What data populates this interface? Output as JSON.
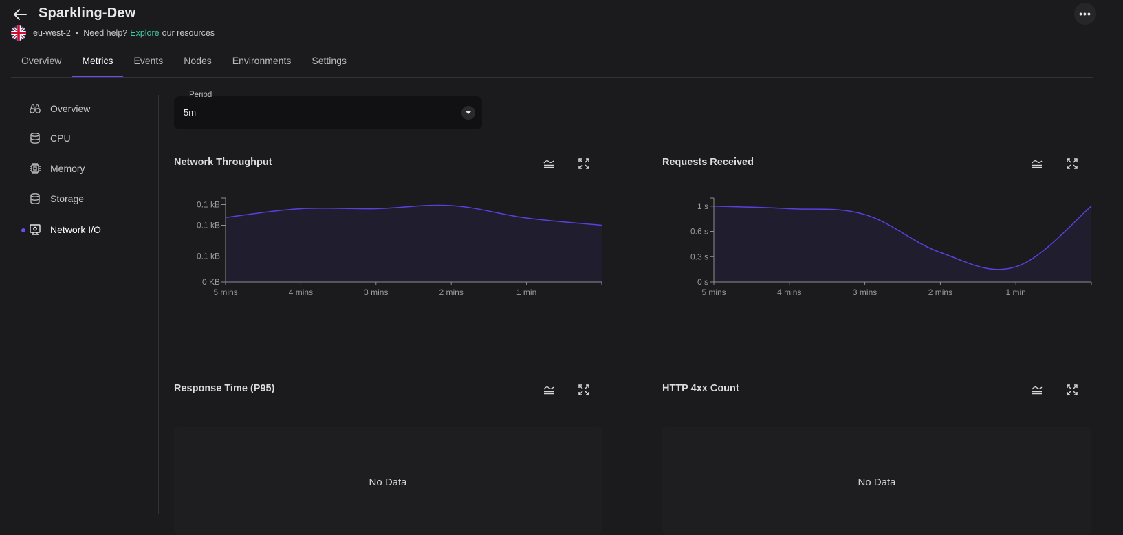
{
  "header": {
    "title": "Sparkling-Dew",
    "region": "eu-west-2",
    "separator": "•",
    "help_prefix": "Need help?",
    "help_link": "Explore",
    "help_suffix": "our resources",
    "more_label": "•••"
  },
  "tabs": [
    {
      "label": "Overview",
      "active": false
    },
    {
      "label": "Metrics",
      "active": true
    },
    {
      "label": "Events",
      "active": false
    },
    {
      "label": "Nodes",
      "active": false
    },
    {
      "label": "Environments",
      "active": false
    },
    {
      "label": "Settings",
      "active": false
    }
  ],
  "sidebar": {
    "items": [
      {
        "label": "Overview",
        "icon": "binoculars-icon",
        "active": false
      },
      {
        "label": "CPU",
        "icon": "database-icon",
        "active": false
      },
      {
        "label": "Memory",
        "icon": "chip-icon",
        "active": false
      },
      {
        "label": "Storage",
        "icon": "database-icon",
        "active": false
      },
      {
        "label": "Network I/O",
        "icon": "network-icon",
        "active": true
      }
    ]
  },
  "period": {
    "label": "Period",
    "value": "5m"
  },
  "cards": {
    "network": {
      "title": "Network Throughput"
    },
    "requests": {
      "title": "Requests Received"
    },
    "response": {
      "title": "Response Time (P95)",
      "empty": "No Data"
    },
    "http4xx": {
      "title": "HTTP 4xx Count",
      "empty": "No Data"
    }
  },
  "colors": {
    "accent": "#6a4cf3",
    "line": "#5b3fe0",
    "link": "#3ec9a7",
    "background": "#1b1b1d"
  },
  "chart_data": [
    {
      "type": "area",
      "title": "Network Throughput",
      "x_ticks": [
        "5 mins",
        "4 mins",
        "3 mins",
        "2 mins",
        "1 min"
      ],
      "x": [
        5,
        4,
        3,
        2,
        1,
        0
      ],
      "y_tick_labels": [
        "0.1 kB",
        "0.1 kB",
        "0.1 kB",
        "0 KB"
      ],
      "y_ticks": [
        0.15,
        0.11,
        0.05,
        0
      ],
      "ylim": [
        0,
        0.16
      ],
      "series": [
        {
          "values": [
            0.125,
            0.142,
            0.142,
            0.148,
            0.124,
            0.11
          ]
        }
      ]
    },
    {
      "type": "area",
      "title": "Requests Received",
      "x_ticks": [
        "5 mins",
        "4 mins",
        "3 mins",
        "2 mins",
        "1 min"
      ],
      "x": [
        5,
        4,
        3,
        2,
        1,
        0
      ],
      "y_tick_labels": [
        "1 s",
        "0.6 s",
        "0.3 s",
        "0 s"
      ],
      "y_ticks": [
        0.9,
        0.6,
        0.3,
        0
      ],
      "ylim": [
        0,
        0.98
      ],
      "series": [
        {
          "values": [
            0.9,
            0.87,
            0.8,
            0.35,
            0.18,
            0.9
          ]
        }
      ]
    }
  ]
}
